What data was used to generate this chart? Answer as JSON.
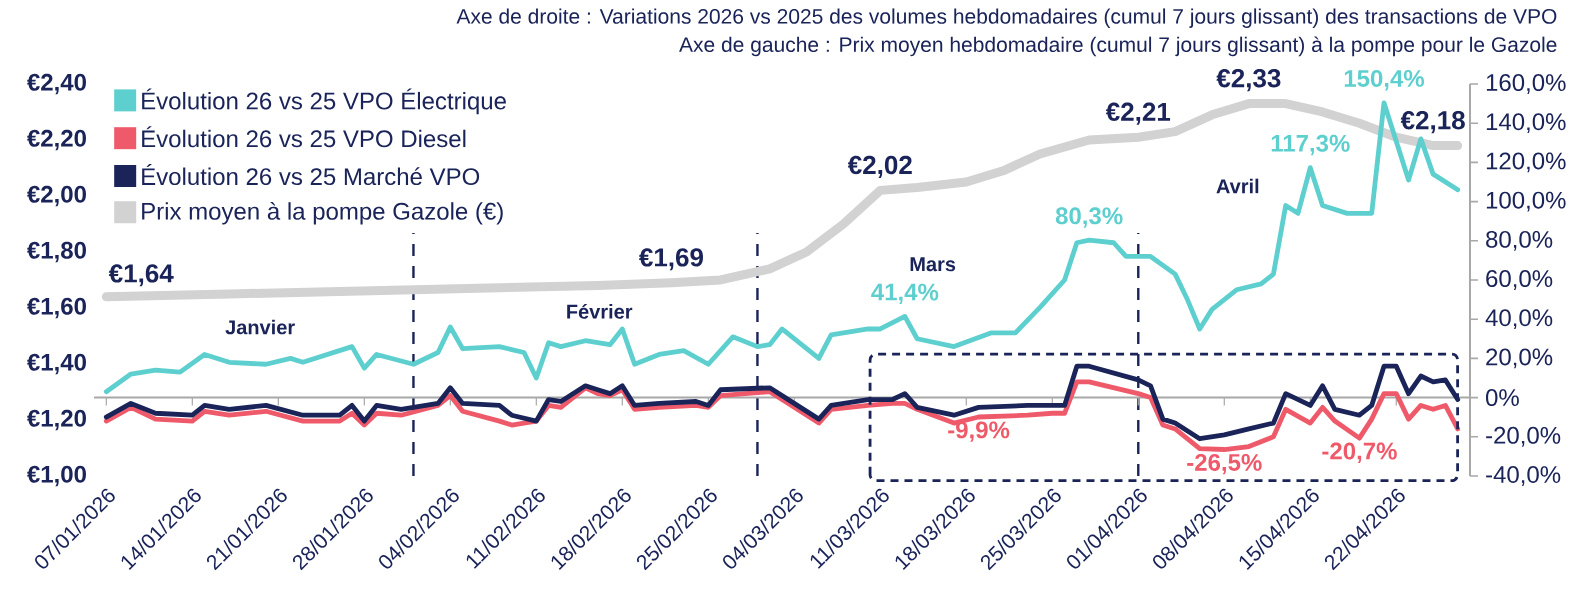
{
  "chart_data": {
    "type": "line",
    "title": "Axe de droite : Variations 2026 vs 2025 des volumes hebdomadaires (cumul 7 jours glissant) des transactions de VPO",
    "subtitle": "Axe de gauche : Prix moyen hebdomadaire (cumul 7 jours glissant) à la pompe pour le Gazole",
    "x": [
      "2026-01-07",
      "2026-01-09",
      "2026-01-11",
      "2026-01-14",
      "2026-01-15",
      "2026-01-17",
      "2026-01-20",
      "2026-01-23",
      "2026-01-26",
      "2026-01-27",
      "2026-01-28",
      "2026-01-29",
      "2026-01-31",
      "2026-02-03",
      "2026-02-04",
      "2026-02-05",
      "2026-02-08",
      "2026-02-09",
      "2026-02-11",
      "2026-02-12",
      "2026-02-13",
      "2026-02-15",
      "2026-02-16",
      "2026-02-17",
      "2026-02-18",
      "2026-02-19",
      "2026-02-21",
      "2026-02-24",
      "2026-02-25",
      "2026-02-26",
      "2026-03-02",
      "2026-03-03",
      "2026-03-06",
      "2026-03-07",
      "2026-03-10",
      "2026-03-12",
      "2026-03-13",
      "2026-03-14",
      "2026-03-17",
      "2026-03-19",
      "2026-03-23",
      "2026-03-25",
      "2026-03-26",
      "2026-03-27",
      "2026-03-28",
      "2026-04-01",
      "2026-04-02",
      "2026-04-03",
      "2026-04-04",
      "2026-04-06",
      "2026-04-08",
      "2026-04-10",
      "2026-04-12",
      "2026-04-13",
      "2026-04-15",
      "2026-04-16",
      "2026-04-17",
      "2026-04-19",
      "2026-04-20",
      "2026-04-21",
      "2026-04-22",
      "2026-04-23",
      "2026-04-24",
      "2026-04-25",
      "2026-04-26",
      "2026-04-27"
    ],
    "series": [
      {
        "name": "Évolution 26 vs 25 VPO Électrique",
        "color": "#5ecfcf",
        "axis": "y2",
        "x": [
          "2026-01-07",
          "2026-01-09",
          "2026-01-11",
          "2026-01-13",
          "2026-01-15",
          "2026-01-17",
          "2026-01-20",
          "2026-01-22",
          "2026-01-23",
          "2026-01-27",
          "2026-01-28",
          "2026-01-29",
          "2026-02-01",
          "2026-02-03",
          "2026-02-04",
          "2026-02-05",
          "2026-02-08",
          "2026-02-10",
          "2026-02-11",
          "2026-02-12",
          "2026-02-13",
          "2026-02-15",
          "2026-02-17",
          "2026-02-18",
          "2026-02-19",
          "2026-02-21",
          "2026-02-23",
          "2026-02-25",
          "2026-02-27",
          "2026-03-01",
          "2026-03-02",
          "2026-03-03",
          "2026-03-06",
          "2026-03-07",
          "2026-03-10",
          "2026-03-11",
          "2026-03-13",
          "2026-03-14",
          "2026-03-17",
          "2026-03-20",
          "2026-03-22",
          "2026-03-24",
          "2026-03-26",
          "2026-03-27",
          "2026-03-28",
          "2026-03-30",
          "2026-03-31",
          "2026-04-02",
          "2026-04-04",
          "2026-04-05",
          "2026-04-06",
          "2026-04-07",
          "2026-04-08",
          "2026-04-09",
          "2026-04-11",
          "2026-04-12",
          "2026-04-13",
          "2026-04-14",
          "2026-04-15",
          "2026-04-16",
          "2026-04-18",
          "2026-04-20",
          "2026-04-21",
          "2026-04-23",
          "2026-04-24",
          "2026-04-25",
          "2026-04-27"
        ],
        "values": [
          3,
          12,
          14,
          13,
          22,
          18,
          17,
          20,
          18,
          26,
          15,
          22,
          17,
          23,
          36,
          25,
          26,
          23,
          10,
          28,
          26,
          29,
          27,
          35,
          17,
          22,
          24,
          17,
          31,
          26,
          27,
          35,
          20,
          32,
          35,
          35,
          41.4,
          30,
          26,
          33,
          33,
          46,
          60,
          79,
          80.3,
          79,
          72,
          72,
          63,
          50,
          35,
          45,
          50,
          55,
          58,
          63,
          98,
          94,
          117.3,
          98,
          94,
          94,
          150.4,
          111,
          132,
          114,
          106
        ],
        "value_labels": [
          null,
          null,
          null,
          null,
          null,
          null,
          null,
          null,
          null,
          null,
          null,
          null,
          null,
          null,
          null,
          null,
          null,
          null,
          null,
          null,
          null,
          null,
          null,
          null,
          null,
          null,
          null,
          null,
          null,
          null,
          null,
          null,
          null,
          null,
          null,
          null,
          "41,4%",
          null,
          null,
          null,
          null,
          null,
          null,
          null,
          "80,3%",
          null,
          null,
          null,
          null,
          null,
          null,
          null,
          null,
          null,
          null,
          null,
          null,
          null,
          "117,3%",
          null,
          null,
          null,
          "150,4%",
          null,
          null,
          null,
          null
        ]
      },
      {
        "name": "Évolution 26 vs 25 VPO Diesel",
        "color": "#ef5a6a",
        "axis": "y2",
        "values": [
          -12,
          -5,
          -11,
          -12,
          -7,
          -9,
          -7,
          -12,
          -12,
          -8,
          -14,
          -8,
          -9,
          -4,
          1,
          -7,
          -12,
          -14,
          -12,
          -4,
          -5,
          5,
          2,
          1,
          4,
          -6,
          -5,
          -4,
          -5,
          1,
          3,
          -1,
          -13,
          -6,
          -4,
          -3,
          -3,
          -6,
          -13,
          -9.9,
          -9,
          -8,
          -8,
          8,
          8,
          2,
          0,
          -14,
          -16,
          -26,
          -26.5,
          -25,
          -20,
          -6,
          -13,
          -5,
          -12,
          -20.7,
          -11,
          2,
          2,
          -11,
          -4,
          -6,
          -4,
          -16
        ],
        "value_labels": [
          null,
          null,
          null,
          null,
          null,
          null,
          null,
          null,
          null,
          null,
          null,
          null,
          null,
          null,
          null,
          null,
          null,
          null,
          null,
          null,
          null,
          null,
          null,
          null,
          null,
          null,
          null,
          null,
          null,
          null,
          null,
          null,
          null,
          null,
          null,
          null,
          null,
          null,
          null,
          "-9,9%",
          null,
          null,
          null,
          null,
          null,
          null,
          null,
          null,
          null,
          null,
          "-26,5%",
          null,
          null,
          null,
          null,
          null,
          null,
          "-20,7%",
          null,
          null,
          null,
          null,
          null,
          null,
          null,
          null
        ]
      },
      {
        "name": "Évolution 26 vs 25 Marché VPO",
        "color": "#1b2459",
        "axis": "y2",
        "values": [
          -10,
          -3,
          -8,
          -9,
          -4,
          -6,
          -4,
          -9,
          -9,
          -4,
          -12,
          -4,
          -6,
          -3,
          5,
          -3,
          -4,
          -9,
          -12,
          -1,
          -2,
          6,
          4,
          2,
          6,
          -4,
          -3,
          -2,
          -4,
          4,
          5,
          1,
          -11,
          -4,
          -1,
          -1,
          2,
          -5,
          -9,
          -5,
          -4,
          -4,
          -4,
          16,
          16,
          9,
          6,
          -11,
          -13,
          -21,
          -19,
          -16,
          -13,
          2,
          -4,
          6,
          -6,
          -9,
          -4,
          16,
          16,
          2,
          11,
          8,
          9,
          -1
        ]
      },
      {
        "name": "Prix moyen à la pompe Gazole (€)",
        "color": "#d2d2d2",
        "axis": "y",
        "x": [
          "2026-01-07",
          "2026-01-17",
          "2026-01-27",
          "2026-02-06",
          "2026-02-16",
          "2026-02-22",
          "2026-02-26",
          "2026-03-02",
          "2026-03-05",
          "2026-03-08",
          "2026-03-11",
          "2026-03-14",
          "2026-03-18",
          "2026-03-21",
          "2026-03-24",
          "2026-03-28",
          "2026-04-01",
          "2026-04-04",
          "2026-04-07",
          "2026-04-10",
          "2026-04-13",
          "2026-04-16",
          "2026-04-19",
          "2026-04-22",
          "2026-04-25",
          "2026-04-27"
        ],
        "values": [
          1.64,
          1.65,
          1.66,
          1.67,
          1.68,
          1.69,
          1.7,
          1.74,
          1.8,
          1.9,
          2.02,
          2.03,
          2.05,
          2.09,
          2.15,
          2.2,
          2.21,
          2.23,
          2.29,
          2.33,
          2.33,
          2.3,
          2.26,
          2.21,
          2.18,
          2.18
        ],
        "value_labels": [
          "€1,64",
          null,
          null,
          null,
          null,
          "€1,69",
          null,
          null,
          null,
          null,
          "€2,02",
          null,
          null,
          null,
          null,
          null,
          "€2,21",
          null,
          null,
          "€2,33",
          null,
          null,
          null,
          null,
          "€2,18",
          null
        ]
      }
    ],
    "xlim": [
      "2026-01-06",
      "2026-04-28"
    ],
    "xticks": [
      {
        "value": "2026-01-07",
        "label": "07/01/2026"
      },
      {
        "value": "2026-01-14",
        "label": "14/01/2026"
      },
      {
        "value": "2026-01-21",
        "label": "21/01/2026"
      },
      {
        "value": "2026-01-28",
        "label": "28/01/2026"
      },
      {
        "value": "2026-02-04",
        "label": "04/02/2026"
      },
      {
        "value": "2026-02-11",
        "label": "11/02/2026"
      },
      {
        "value": "2026-02-18",
        "label": "18/02/2026"
      },
      {
        "value": "2026-02-25",
        "label": "25/02/2026"
      },
      {
        "value": "2026-03-04",
        "label": "04/03/2026"
      },
      {
        "value": "2026-03-11",
        "label": "11/03/2026"
      },
      {
        "value": "2026-03-18",
        "label": "18/03/2026"
      },
      {
        "value": "2026-03-25",
        "label": "25/03/2026"
      },
      {
        "value": "2026-04-01",
        "label": "01/04/2026"
      },
      {
        "value": "2026-04-08",
        "label": "08/04/2026"
      },
      {
        "value": "2026-04-15",
        "label": "15/04/2026"
      },
      {
        "value": "2026-04-22",
        "label": "22/04/2026"
      }
    ],
    "ylim": [
      1.0,
      2.4
    ],
    "yticks": [
      {
        "value": 1.0,
        "label": "€1,00"
      },
      {
        "value": 1.2,
        "label": "€1,20"
      },
      {
        "value": 1.4,
        "label": "€1,40"
      },
      {
        "value": 1.6,
        "label": "€1,60"
      },
      {
        "value": 1.8,
        "label": "€1,80"
      },
      {
        "value": 2.0,
        "label": "€2,00"
      },
      {
        "value": 2.2,
        "label": "€2,20"
      },
      {
        "value": 2.4,
        "label": "€2,40"
      }
    ],
    "y2lim": [
      -40,
      160
    ],
    "y2ticks": [
      {
        "value": -40,
        "label": "-40,0%"
      },
      {
        "value": -20,
        "label": "-20,0%"
      },
      {
        "value": 0,
        "label": "0%"
      },
      {
        "value": 20,
        "label": "20,0%"
      },
      {
        "value": 40,
        "label": "40,0%"
      },
      {
        "value": 60,
        "label": "60,0%"
      },
      {
        "value": 80,
        "label": "80,0%"
      },
      {
        "value": 100,
        "label": "100,0%"
      },
      {
        "value": 120,
        "label": "120,0%"
      },
      {
        "value": 140,
        "label": "140,0%"
      },
      {
        "value": 160,
        "label": "160,0%"
      }
    ],
    "ref_lines": [
      {
        "axis": "x",
        "value": "2026-02-01",
        "color": "#1b2459",
        "line_style": "dashed"
      },
      {
        "axis": "x",
        "value": "2026-03-01",
        "color": "#1b2459",
        "line_style": "dashed"
      },
      {
        "axis": "x",
        "value": "2026-04-01",
        "color": "#1b2459",
        "line_style": "dashed"
      }
    ],
    "annotations": [
      "Janvier",
      "Février",
      "Mars",
      "Avril"
    ],
    "legend": "top left",
    "line_style": "solid"
  }
}
